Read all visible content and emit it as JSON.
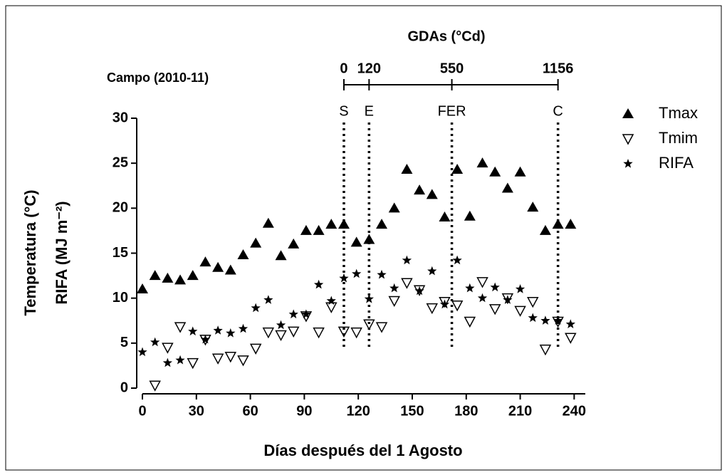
{
  "chart_data": {
    "type": "scatter",
    "subtitle": "Campo (2010-11)",
    "x_label": "Días después del 1 Agosto",
    "y_label": [
      "Temperatura (°C)",
      "RIFA (MJ m⁻²)"
    ],
    "xlim": [
      0,
      245
    ],
    "ylim": [
      0,
      30
    ],
    "xticks": [
      0,
      30,
      60,
      90,
      120,
      150,
      180,
      210,
      240
    ],
    "yticks": [
      0,
      5,
      10,
      15,
      20,
      25,
      30
    ],
    "x": [
      0,
      7,
      14,
      21,
      28,
      35,
      42,
      49,
      56,
      63,
      70,
      77,
      84,
      91,
      98,
      105,
      112,
      119,
      126,
      133,
      140,
      147,
      154,
      161,
      168,
      175,
      182,
      189,
      196,
      203,
      210,
      217,
      224,
      231,
      238
    ],
    "series": [
      {
        "name": "Tmax",
        "color": "#000000",
        "marker": "triangle",
        "values": [
          11,
          12.5,
          12.2,
          12,
          12.5,
          14,
          13.4,
          13.1,
          14.8,
          16.1,
          18.3,
          14.7,
          16,
          17.5,
          17.5,
          18.2,
          18.2,
          16.2,
          16.5,
          18.2,
          20,
          24.3,
          22,
          21.5,
          19,
          24.3,
          19.1,
          25,
          24,
          22.2,
          24,
          20.1,
          17.5,
          18.2,
          18.2
        ]
      },
      {
        "name": "Tmim",
        "color": "#000000",
        "marker": "triangle-down-open",
        "values": [
          null,
          0.3,
          4.5,
          6.8,
          2.8,
          5.4,
          3.3,
          3.5,
          3.1,
          4.4,
          6.2,
          5.9,
          6.3,
          8,
          6.2,
          9,
          6.3,
          6.2,
          7.1,
          6.8,
          9.7,
          11.7,
          10.9,
          8.9,
          9.6,
          9.2,
          7.4,
          11.8,
          8.8,
          10,
          8.6,
          9.6,
          4.3,
          7.4,
          5.6
        ]
      },
      {
        "name": "RIFA",
        "color": "#000000",
        "marker": "star",
        "values": [
          4,
          5.1,
          2.8,
          3.1,
          6.3,
          5.4,
          6.4,
          6.1,
          6.6,
          8.9,
          9.8,
          7,
          8.2,
          8.2,
          11.5,
          9.7,
          12.2,
          12.7,
          9.9,
          12.6,
          11.1,
          14.2,
          10.8,
          13,
          9.3,
          14.2,
          11.1,
          10,
          11.2,
          9.8,
          11,
          7.8,
          7.5,
          7.5,
          7.1
        ]
      }
    ],
    "gda_title": "GDAs (°Cd)",
    "stages": [
      {
        "label": "S",
        "day": 112,
        "gda": 0
      },
      {
        "label": "E",
        "day": 126,
        "gda": 120
      },
      {
        "label": "FER",
        "day": 172,
        "gda": 550
      },
      {
        "label": "C",
        "day": 231,
        "gda": 1156
      }
    ],
    "legend": "right"
  }
}
